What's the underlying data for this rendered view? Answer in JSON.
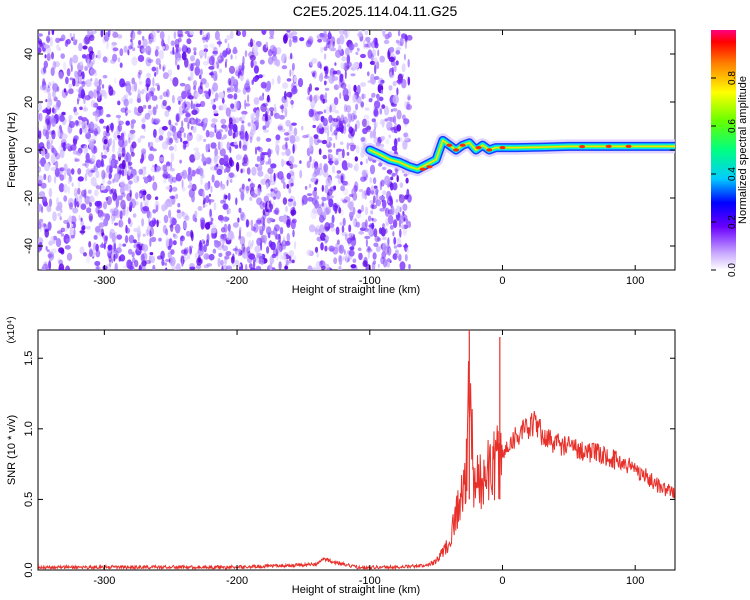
{
  "title": "C2E5.2025.114.04.11.G25",
  "chart_data": [
    {
      "type": "heatmap",
      "xlabel": "Height of straight line (km)",
      "ylabel": "Frequency (Hz)",
      "xlim": [
        -350,
        130
      ],
      "ylim": [
        -50,
        50
      ],
      "xticks": [
        -300,
        -200,
        -100,
        0,
        100
      ],
      "yticks": [
        -40,
        -20,
        0,
        20,
        40
      ],
      "colorbar": {
        "label": "Normalized spectral amplitude",
        "range": [
          0,
          1
        ],
        "ticks": [
          0.0,
          0.2,
          0.4,
          0.6,
          0.8
        ]
      },
      "ridge": {
        "x": [
          -100,
          -92,
          -85,
          -78,
          -70,
          -64,
          -57,
          -50,
          -45,
          -40,
          -35,
          -30,
          -25,
          -20,
          -15,
          -10,
          -5,
          0,
          10,
          30,
          50,
          80,
          100,
          130
        ],
        "y": [
          0,
          -2,
          -4,
          -5,
          -7,
          -8,
          -6,
          -4,
          4,
          2,
          0,
          2,
          3,
          0,
          2,
          0,
          1,
          1,
          1,
          1.2,
          1.5,
          1.5,
          1.5,
          1.5
        ]
      }
    },
    {
      "type": "line",
      "xlabel": "Height of straight line (km)",
      "ylabel": "SNR (10 * v/v)",
      "yunit": "(x10⁴)",
      "xlim": [
        -350,
        130
      ],
      "ylim": [
        0,
        1.7
      ],
      "xticks": [
        -300,
        -200,
        -100,
        0,
        100
      ],
      "yticks": [
        0.0,
        0.5,
        1.0,
        1.5
      ],
      "ytick_labels": [
        "0.0",
        "0.5",
        "1.0",
        "1.5"
      ],
      "series": [
        {
          "color": "#e8302a",
          "x": [
            -350,
            -200,
            -140,
            -135,
            -125,
            -110,
            -80,
            -60,
            -50,
            -40,
            -35,
            -30,
            -27,
            -25,
            -22,
            -20,
            -15,
            -10,
            -5,
            0,
            5,
            10,
            20,
            25,
            30,
            40,
            60,
            80,
            100,
            110,
            120,
            130
          ],
          "values": [
            0.02,
            0.02,
            0.04,
            0.08,
            0.05,
            0.02,
            0.02,
            0.03,
            0.06,
            0.2,
            0.4,
            0.55,
            0.7,
            1.7,
            0.55,
            0.6,
            0.65,
            0.7,
            0.75,
            0.8,
            0.9,
            0.95,
            1.0,
            1.05,
            0.95,
            0.9,
            0.85,
            0.8,
            0.72,
            0.65,
            0.58,
            0.55
          ]
        }
      ]
    }
  ]
}
